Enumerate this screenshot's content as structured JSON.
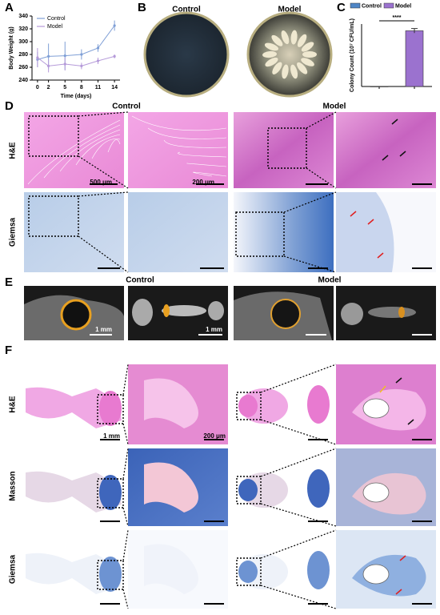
{
  "chart_data": [
    {
      "type": "line",
      "panel": "A",
      "xlabel": "Time (days)",
      "ylabel": "Body Weight (g)",
      "x": [
        0,
        2,
        5,
        8,
        11,
        14
      ],
      "xlim": [
        -1,
        15
      ],
      "xticks": [
        0,
        2,
        5,
        8,
        11,
        14
      ],
      "ylim": [
        240,
        340
      ],
      "yticks": [
        240,
        260,
        280,
        300,
        320,
        340
      ],
      "legend": "upper left",
      "series": [
        {
          "name": "Control",
          "color": "#7f9fd6",
          "values": [
            272,
            277,
            278,
            280,
            290,
            325
          ],
          "errors": [
            12,
            20,
            22,
            8,
            6,
            8
          ]
        },
        {
          "name": "Model",
          "color": "#b59ad9",
          "values": [
            275,
            262,
            265,
            262,
            270,
            277
          ],
          "errors": [
            15,
            10,
            10,
            5,
            5,
            3
          ]
        }
      ]
    },
    {
      "type": "bar",
      "panel": "C",
      "ylabel": "Colony Count (10⁷ CFU/mL)",
      "categories": [
        null,
        null
      ],
      "ylim": [
        0,
        2500
      ],
      "legend": "upper center",
      "annotation": "****",
      "series": [
        {
          "name": "Control",
          "color": "#4f86c6",
          "values": [
            0,
            null
          ],
          "errors": [
            0,
            null
          ]
        },
        {
          "name": "Model",
          "color": "#9b72cf",
          "values": [
            null,
            2230
          ],
          "errors": [
            null,
            90
          ]
        }
      ]
    }
  ],
  "panel_b": {
    "label": "B",
    "titles": [
      "Control",
      "Model"
    ]
  },
  "panel_d": {
    "label": "D",
    "titles": [
      "Control",
      "Model"
    ],
    "rows": [
      "H&E",
      "Giemsa"
    ],
    "scales": [
      "500 μm",
      "200 μm"
    ]
  },
  "panel_e": {
    "label": "E",
    "titles": [
      "Control",
      "Model"
    ],
    "scales": [
      "1 mm",
      "1 mm"
    ]
  },
  "panel_f": {
    "label": "F",
    "rows": [
      "H&E",
      "Masson",
      "Giemsa"
    ],
    "scales": [
      "1 mm",
      "200 μm"
    ]
  }
}
